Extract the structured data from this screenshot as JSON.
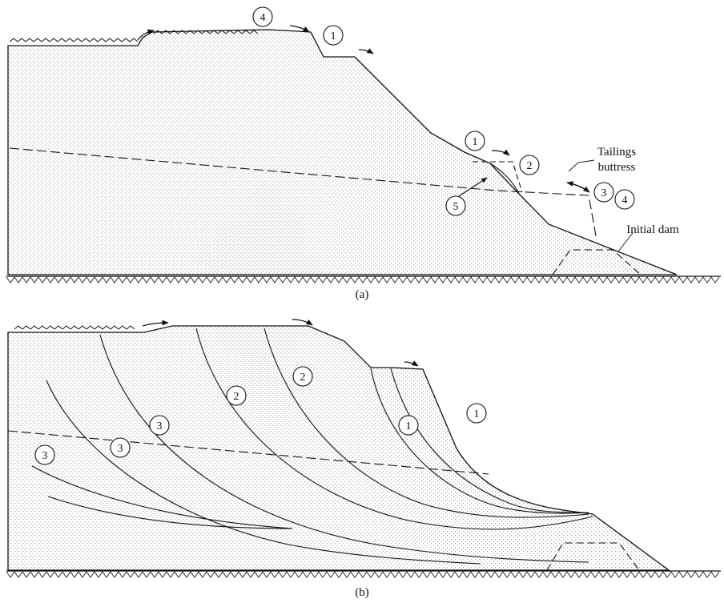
{
  "panels": [
    {
      "caption": "(a)",
      "markers": [
        "1",
        "1",
        "2",
        "3",
        "4",
        "4",
        "5"
      ],
      "labels": {
        "tailings_buttress": [
          "Tailings",
          "buttress"
        ],
        "initial_dam": "Initial dam"
      }
    },
    {
      "caption": "(b)",
      "markers": [
        "1",
        "1",
        "2",
        "2",
        "3",
        "3",
        "3"
      ]
    }
  ],
  "colors": {
    "ink": "#111111",
    "stipple": "#8a8a8a",
    "background": "#ffffff"
  }
}
